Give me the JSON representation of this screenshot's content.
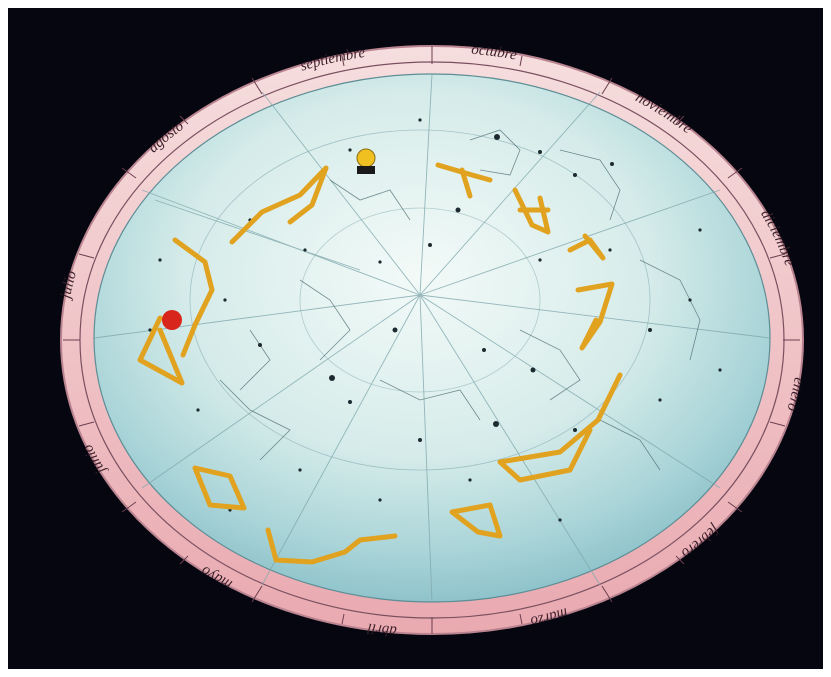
{
  "scene": {
    "subject": "planisphere",
    "colors": {
      "frame": "#ffffff",
      "background": "#05060f",
      "ring": "#f2c4c6",
      "ring_edge": "#c98f9a",
      "sky_light": "#e6f3f1",
      "sky_mid": "#aad5d8",
      "zodiac_line": "#e0a21f",
      "sun_marker": "#f0c020",
      "red_marker": "#d9261c"
    }
  },
  "months": [
    {
      "id": "m1",
      "label": "enero"
    },
    {
      "id": "m2",
      "label": "febrero"
    },
    {
      "id": "m3",
      "label": "marzo"
    },
    {
      "id": "m4",
      "label": "abril"
    },
    {
      "id": "m5",
      "label": "mayo"
    },
    {
      "id": "m6",
      "label": "junio"
    },
    {
      "id": "m7",
      "label": "julio"
    },
    {
      "id": "m8",
      "label": "agosto"
    },
    {
      "id": "m9",
      "label": "septiembre"
    },
    {
      "id": "m10",
      "label": "octubre"
    },
    {
      "id": "m11",
      "label": "noviembre"
    },
    {
      "id": "m12",
      "label": "diciembre"
    }
  ]
}
